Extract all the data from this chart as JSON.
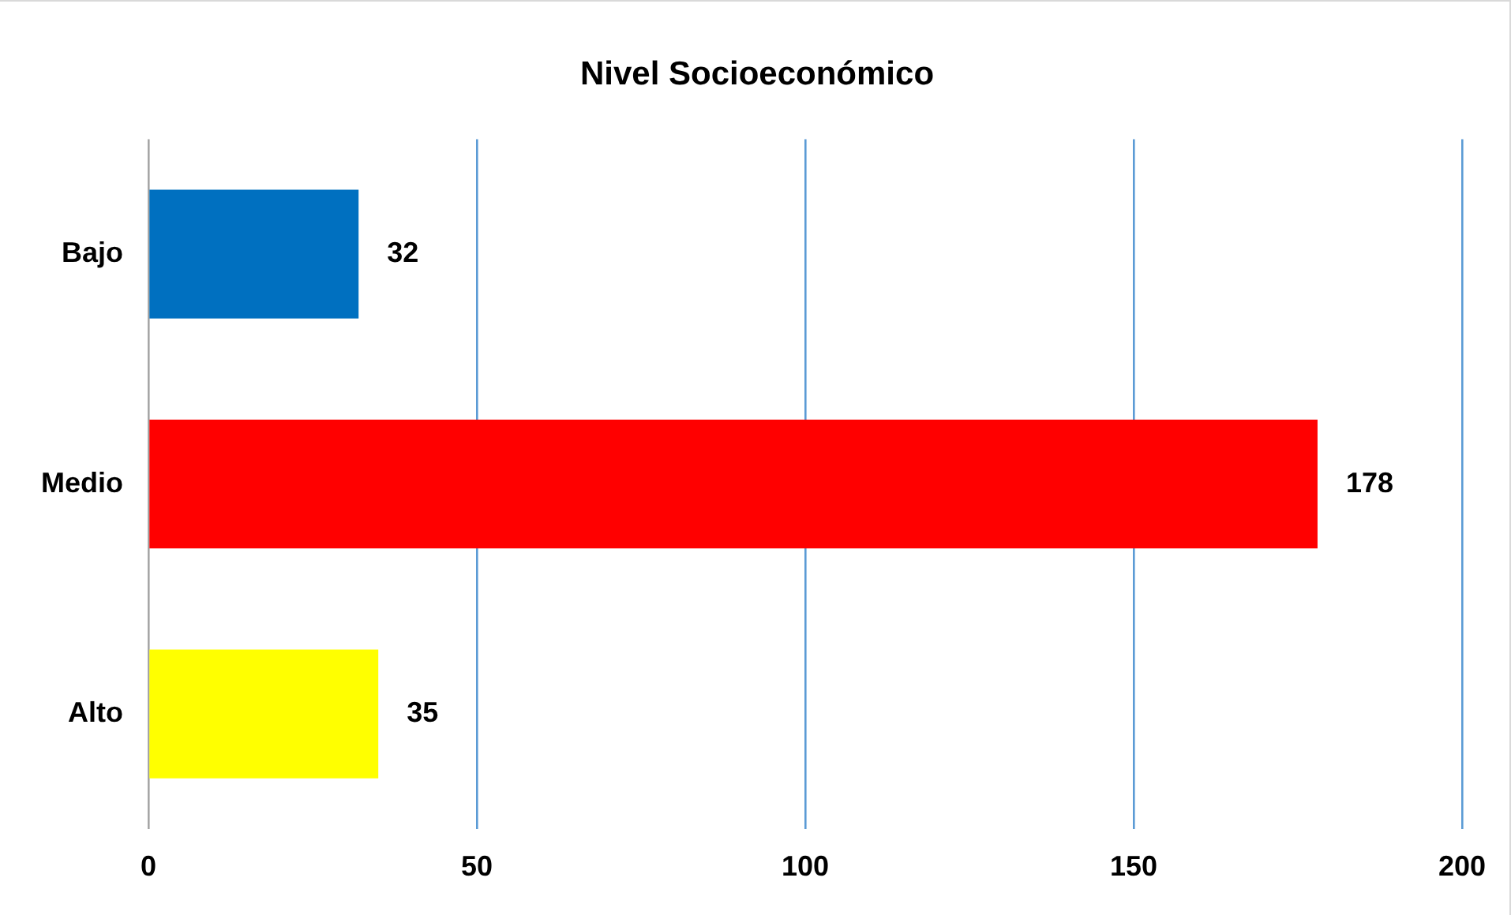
{
  "chart_data": {
    "type": "bar",
    "orientation": "horizontal",
    "title": "Nivel Socioeconómico",
    "categories": [
      "Bajo",
      "Medio",
      "Alto"
    ],
    "values": [
      32,
      178,
      35
    ],
    "colors": [
      "#0070c0",
      "#ff0000",
      "#ffff00"
    ],
    "xlim": [
      0,
      200
    ],
    "xticks": [
      0,
      50,
      100,
      150,
      200
    ],
    "grid": "x",
    "legend": false,
    "data_labels": true
  }
}
